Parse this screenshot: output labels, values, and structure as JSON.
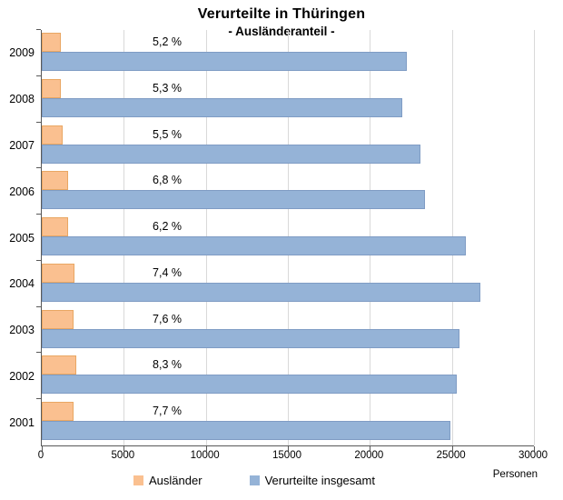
{
  "title": "Verurteilte in Thüringen",
  "subtitle": "- Ausländeranteil -",
  "unit_label": "Personen",
  "colors": {
    "auslaender_fill": "#FAC090",
    "auslaender_border": "#E9A763",
    "gesamt_fill": "#95B3D7",
    "gesamt_border": "#7F9CC4",
    "gridline": "#D9D9D9",
    "axis": "#595959"
  },
  "chart_data": {
    "type": "bar",
    "orientation": "horizontal",
    "title": "Verurteilte in Thüringen",
    "subtitle": "- Ausländeranteil -",
    "categories": [
      "2009",
      "2008",
      "2007",
      "2006",
      "2005",
      "2004",
      "2003",
      "2002",
      "2001"
    ],
    "series": [
      {
        "name": "Ausländer",
        "color": "#FAC090",
        "values": [
          1160,
          1170,
          1270,
          1590,
          1600,
          1980,
          1930,
          2100,
          1920
        ]
      },
      {
        "name": "Verurteilte insgesamt",
        "color": "#95B3D7",
        "values": [
          22250,
          22000,
          23100,
          23350,
          25850,
          26750,
          25450,
          25300,
          24900
        ]
      }
    ],
    "data_labels": [
      "5,2 %",
      "5,3 %",
      "5,5 %",
      "6,8 %",
      "6,2 %",
      "7,4 %",
      "7,6 %",
      "8,3 %",
      "7,7 %"
    ],
    "xlabel": "Personen",
    "ylabel": "",
    "xlim": [
      0,
      30000
    ],
    "x_tick_labels": [
      "0",
      "5000",
      "10000",
      "15000",
      "20000",
      "25000",
      "30000"
    ],
    "grid": "vertical",
    "legend_position": "bottom"
  }
}
